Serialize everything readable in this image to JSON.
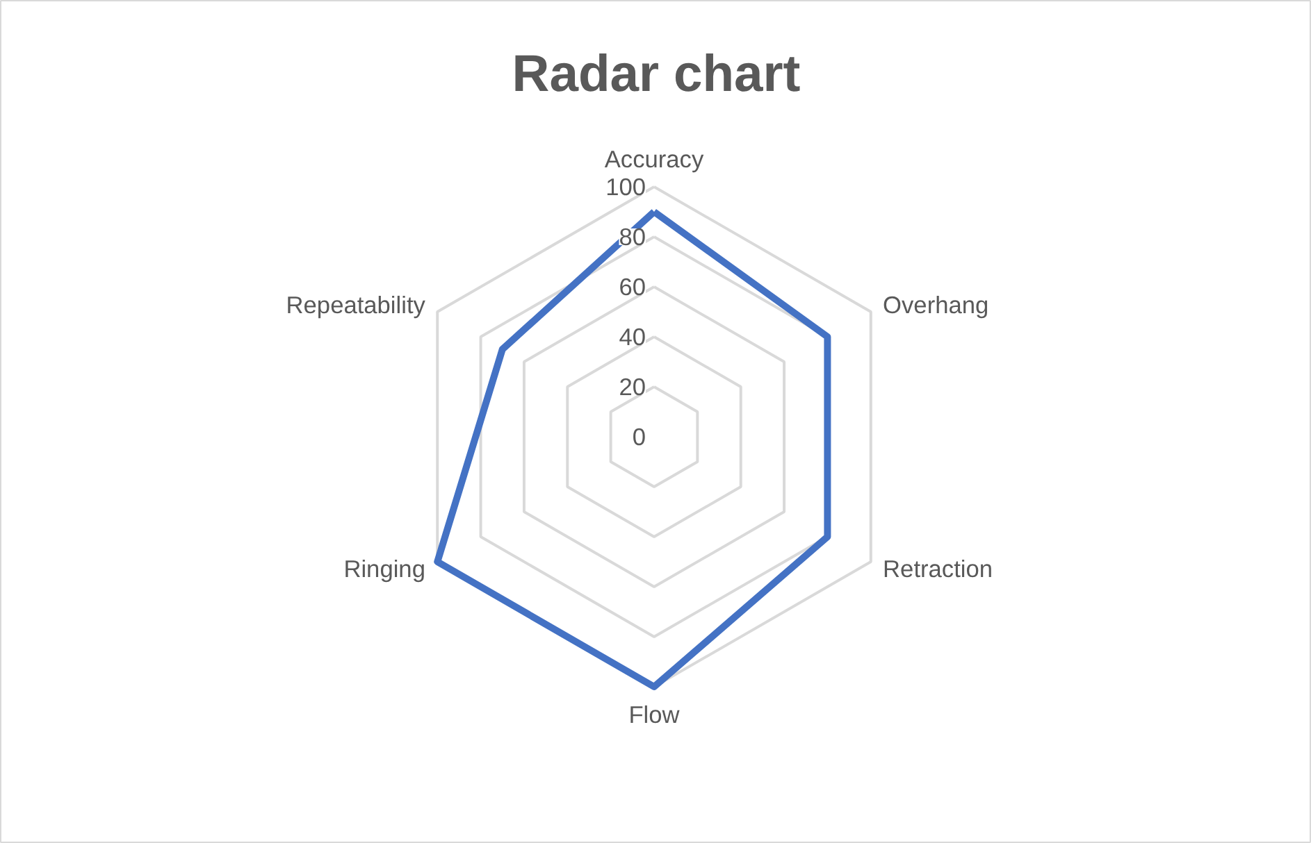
{
  "chart_data": {
    "type": "radar",
    "title": "Radar chart",
    "categories": [
      "Accuracy",
      "Overhang",
      "Retraction",
      "Flow",
      "Ringing",
      "Repeatability"
    ],
    "series": [
      {
        "color": "#4472c4",
        "values": [
          90,
          80,
          80,
          100,
          100,
          70
        ]
      }
    ],
    "ylim": [
      0,
      100
    ],
    "yticks": [
      0,
      20,
      40,
      60,
      80,
      100
    ],
    "grid": true
  }
}
